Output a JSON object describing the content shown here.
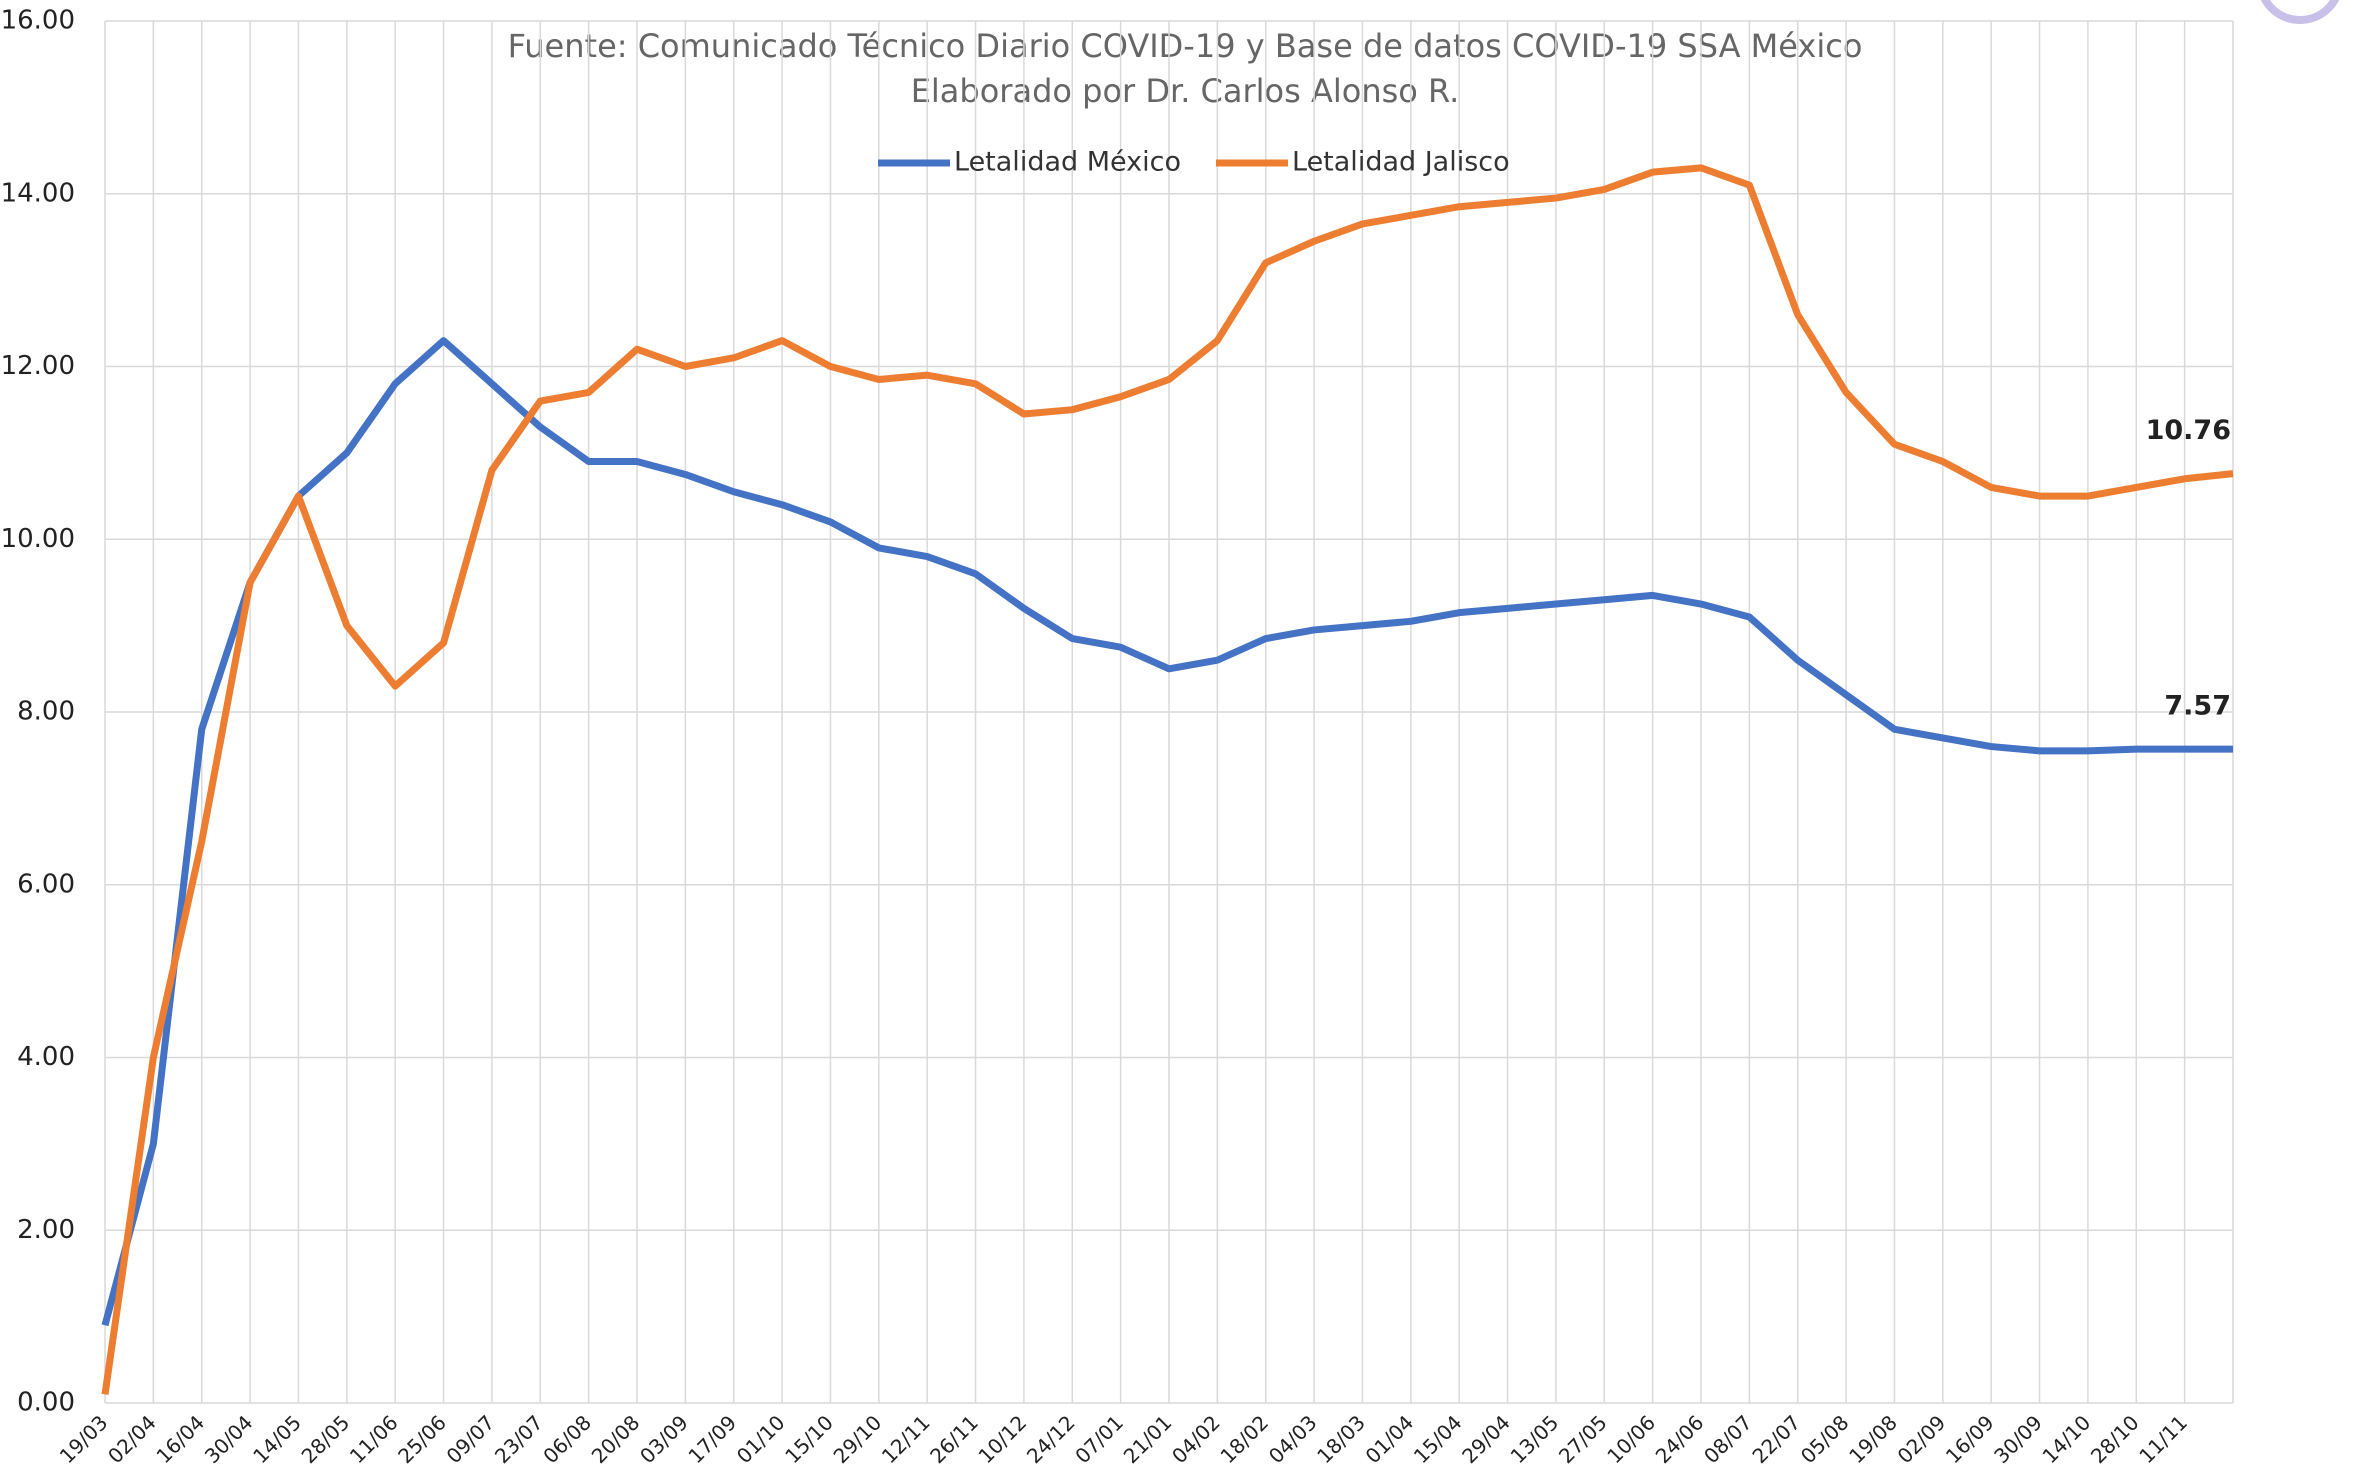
{
  "chart_data": {
    "type": "line",
    "subtitle": [
      "Fuente: Comunicado Técnico Diario COVID-19 y Base de datos COVID-19 SSA México",
      "Elaborado por Dr. Carlos Alonso R."
    ],
    "categories": [
      "19/03",
      "02/04",
      "16/04",
      "30/04",
      "14/05",
      "28/05",
      "11/06",
      "25/06",
      "09/07",
      "23/07",
      "06/08",
      "20/08",
      "03/09",
      "17/09",
      "01/10",
      "15/10",
      "29/10",
      "12/11",
      "26/11",
      "10/12",
      "24/12",
      "07/01",
      "21/01",
      "04/02",
      "18/02",
      "04/03",
      "18/03",
      "01/04",
      "15/04",
      "29/04",
      "13/05",
      "27/05",
      "10/06",
      "24/06",
      "08/07",
      "22/07",
      "05/08",
      "19/08",
      "02/09",
      "16/09",
      "30/09",
      "14/10",
      "28/10",
      "11/11",
      null
    ],
    "series": [
      {
        "name": "Letalidad México",
        "color": "#4472c4",
        "data_labels": "last",
        "values": [
          0.9,
          3.0,
          7.8,
          9.5,
          10.5,
          11.0,
          11.8,
          12.3,
          11.8,
          11.3,
          10.9,
          10.9,
          10.75,
          10.55,
          10.4,
          10.2,
          9.9,
          9.8,
          9.6,
          9.2,
          8.85,
          8.75,
          8.5,
          8.6,
          8.85,
          8.95,
          9.0,
          9.05,
          9.15,
          9.2,
          9.25,
          9.3,
          9.35,
          9.25,
          9.1,
          8.6,
          8.2,
          7.8,
          7.7,
          7.6,
          7.55,
          7.55,
          7.57,
          7.57,
          7.57
        ]
      },
      {
        "name": "Letalidad Jalisco",
        "color": "#ed7d31",
        "data_labels": "last",
        "values": [
          0.1,
          4.0,
          6.5,
          9.5,
          10.5,
          9.0,
          8.3,
          8.8,
          10.8,
          11.6,
          11.7,
          12.2,
          12.0,
          12.1,
          12.3,
          12.0,
          11.85,
          11.9,
          11.8,
          11.45,
          11.5,
          11.65,
          11.85,
          12.3,
          13.2,
          13.45,
          13.65,
          13.75,
          13.85,
          13.9,
          13.95,
          14.05,
          14.25,
          14.3,
          14.1,
          12.6,
          11.7,
          11.1,
          10.9,
          10.6,
          10.5,
          10.5,
          10.6,
          10.7,
          10.76
        ]
      }
    ],
    "ylim": [
      0,
      16
    ],
    "yticks": [
      {
        "value": 0,
        "label": "0.00"
      },
      {
        "value": 2,
        "label": "2.00"
      },
      {
        "value": 4,
        "label": "4.00"
      },
      {
        "value": 6,
        "label": "6.00"
      },
      {
        "value": 8,
        "label": "8.00"
      },
      {
        "value": 10,
        "label": "10.00"
      },
      {
        "value": 12,
        "label": "12.00"
      },
      {
        "value": 14,
        "label": "14.00"
      },
      {
        "value": 16,
        "label": "16.00"
      }
    ],
    "grid": true,
    "legend": "top"
  }
}
